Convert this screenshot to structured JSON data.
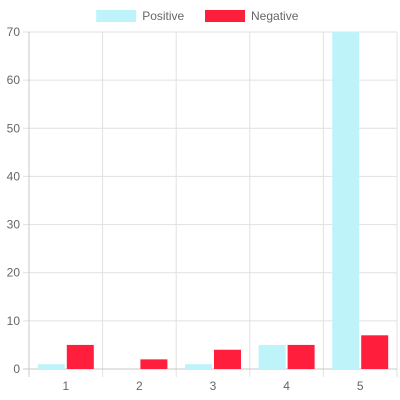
{
  "chart_data": {
    "type": "bar",
    "categories": [
      "1",
      "2",
      "3",
      "4",
      "5"
    ],
    "series": [
      {
        "name": "Positive",
        "values": [
          1,
          0,
          1,
          5,
          70
        ],
        "color": "#bff3fa"
      },
      {
        "name": "Negative",
        "values": [
          5,
          2,
          4,
          5,
          7
        ],
        "color": "#ff1f3d"
      }
    ],
    "ylim": [
      0,
      70
    ],
    "yticks": [
      0,
      10,
      20,
      30,
      40,
      50,
      60,
      70
    ],
    "grid": true,
    "legend": "top-center"
  }
}
